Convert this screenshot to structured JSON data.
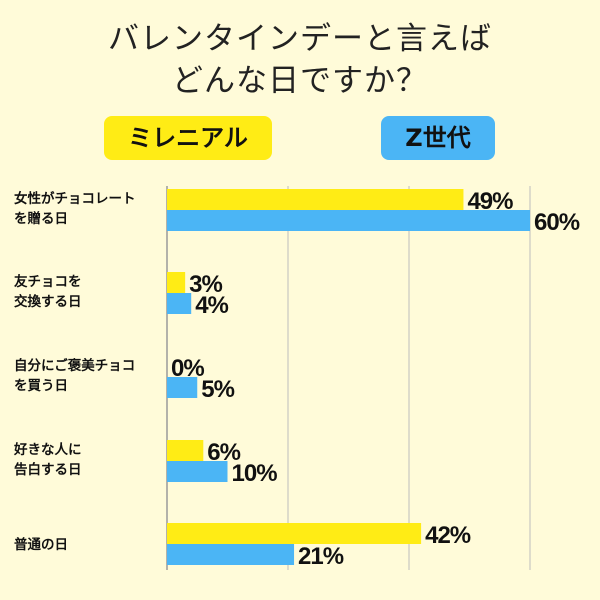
{
  "title": {
    "line1": "バレンタインデーと言えば",
    "line2": "どんな日ですか？"
  },
  "legend": [
    {
      "label": "ミレニアル",
      "color": "#ffec15"
    },
    {
      "label": "Z世代",
      "color": "#4bb5f5"
    }
  ],
  "chart_data": {
    "type": "bar",
    "orientation": "horizontal",
    "categories": [
      [
        "女性がチョコレート",
        "を贈る日"
      ],
      [
        "友チョコを",
        "交換する日"
      ],
      [
        "自分にご褒美チョコ",
        "を買う日"
      ],
      [
        "好きな人に",
        "告白する日"
      ],
      [
        "普通の日"
      ]
    ],
    "series": [
      {
        "name": "ミレニアル",
        "color": "#ffec15",
        "values": [
          49,
          3,
          0,
          6,
          42
        ]
      },
      {
        "name": "Z世代",
        "color": "#4bb5f5",
        "values": [
          60,
          4,
          5,
          10,
          21
        ]
      }
    ],
    "value_suffix": "%",
    "xlim": [
      0,
      60
    ],
    "grid": true,
    "legend_position": "top"
  }
}
